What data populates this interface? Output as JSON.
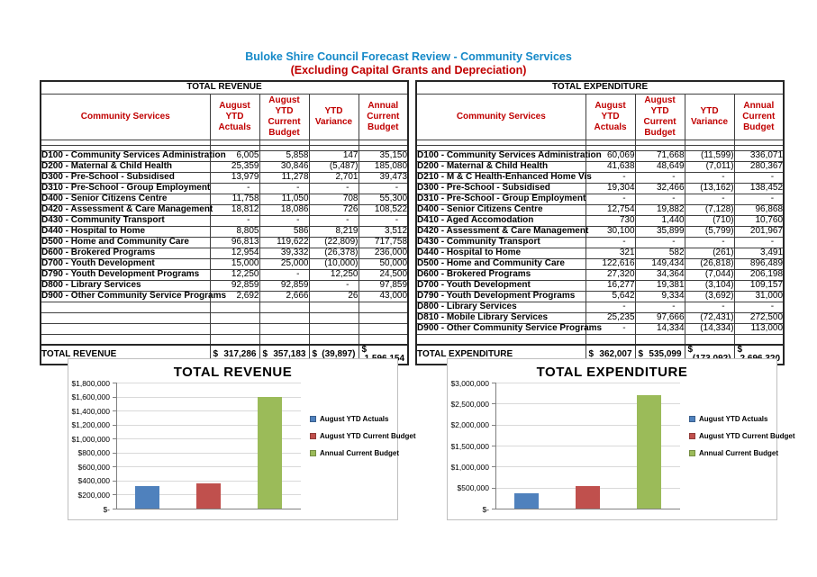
{
  "page": {
    "title": "Buloke Shire Council Forecast Review - Community Services",
    "subtitle": "(Excluding Capital Grants and Depreciation)"
  },
  "colors": {
    "title_blue": "#1589C8",
    "header_red": "#C00000",
    "bar_blue": "#4F81BD",
    "bar_red": "#C0504D",
    "bar_green": "#9BBB59"
  },
  "tables": [
    {
      "title": "TOTAL REVENUE",
      "label_header": "Community Services",
      "columns": [
        "August YTD Actuals",
        "August YTD Current Budget",
        "YTD Variance",
        "Annual Current Budget"
      ],
      "rows": [
        {
          "label": "D100 - Community Services Administration",
          "values": [
            "6,005",
            "5,858",
            "147",
            "35,150"
          ]
        },
        {
          "label": "D200 - Maternal & Child Health",
          "values": [
            "25,359",
            "30,846",
            "(5,487)",
            "185,080"
          ]
        },
        {
          "label": "D300 - Pre-School - Subsidised",
          "values": [
            "13,979",
            "11,278",
            "2,701",
            "39,473"
          ]
        },
        {
          "label": "D310 - Pre-School - Group Employment",
          "values": [
            "-",
            "-",
            "-",
            "-"
          ]
        },
        {
          "label": "D400 - Senior Citizens Centre",
          "values": [
            "11,758",
            "11,050",
            "708",
            "55,300"
          ]
        },
        {
          "label": "D420 - Assessment & Care Management",
          "values": [
            "18,812",
            "18,086",
            "726",
            "108,522"
          ]
        },
        {
          "label": "D430 - Community Transport",
          "values": [
            "-",
            "-",
            "-",
            "-"
          ]
        },
        {
          "label": "D440 - Hospital to Home",
          "values": [
            "8,805",
            "586",
            "8,219",
            "3,512"
          ]
        },
        {
          "label": "D500 - Home and Community Care",
          "values": [
            "96,813",
            "119,622",
            "(22,809)",
            "717,758"
          ]
        },
        {
          "label": "D600 - Brokered Programs",
          "values": [
            "12,954",
            "39,332",
            "(26,378)",
            "236,000"
          ]
        },
        {
          "label": "D700 - Youth Development",
          "values": [
            "15,000",
            "25,000",
            "(10,000)",
            "50,000"
          ]
        },
        {
          "label": "D790 - Youth Development Programs",
          "values": [
            "12,250",
            "-",
            "12,250",
            "24,500"
          ]
        },
        {
          "label": "D800 - Library Services",
          "values": [
            "92,859",
            "92,859",
            "-",
            "97,859"
          ]
        },
        {
          "label": "D900 - Other Community Service Programs",
          "values": [
            "2,692",
            "2,666",
            "26",
            "43,000"
          ]
        },
        {
          "label": "",
          "values": [
            "",
            "",
            "",
            ""
          ]
        },
        {
          "label": "",
          "values": [
            "",
            "",
            "",
            ""
          ]
        },
        {
          "label": "",
          "values": [
            "",
            "",
            "",
            ""
          ]
        },
        {
          "label": "",
          "values": [
            "",
            "",
            "",
            ""
          ]
        }
      ],
      "total": {
        "label": "TOTAL REVENUE",
        "currency": "$",
        "values": [
          "317,286",
          "357,183",
          "(39,897)",
          "1,596,154"
        ]
      }
    },
    {
      "title": "TOTAL EXPENDITURE",
      "label_header": "Community Services",
      "columns": [
        "August YTD Actuals",
        "August YTD Current Budget",
        "YTD Variance",
        "Annual Current Budget"
      ],
      "rows": [
        {
          "label": "D100 - Community Services Administration",
          "values": [
            "60,069",
            "71,668",
            "(11,599)",
            "336,071"
          ]
        },
        {
          "label": "D200 - Maternal & Child Health",
          "values": [
            "41,638",
            "48,649",
            "(7,011)",
            "280,367"
          ]
        },
        {
          "label": "D210 - M & C Health-Enhanced Home Vis",
          "values": [
            "-",
            "-",
            "-",
            "-"
          ]
        },
        {
          "label": "D300 - Pre-School - Subsidised",
          "values": [
            "19,304",
            "32,466",
            "(13,162)",
            "138,452"
          ]
        },
        {
          "label": "D310 - Pre-School - Group Employment",
          "values": [
            "-",
            "-",
            "-",
            "-"
          ]
        },
        {
          "label": "D400 - Senior Citizens Centre",
          "values": [
            "12,754",
            "19,882",
            "(7,128)",
            "96,868"
          ]
        },
        {
          "label": "D410 - Aged Accomodation",
          "values": [
            "730",
            "1,440",
            "(710)",
            "10,760"
          ]
        },
        {
          "label": "D420 - Assessment & Care Management",
          "values": [
            "30,100",
            "35,899",
            "(5,799)",
            "201,967"
          ]
        },
        {
          "label": "D430 - Community Transport",
          "values": [
            "-",
            "-",
            "-",
            "-"
          ]
        },
        {
          "label": "D440 - Hospital to Home",
          "values": [
            "321",
            "582",
            "(261)",
            "3,491"
          ]
        },
        {
          "label": "D500 - Home and Community Care",
          "values": [
            "122,616",
            "149,434",
            "(26,818)",
            "896,489"
          ]
        },
        {
          "label": "D600 - Brokered Programs",
          "values": [
            "27,320",
            "34,364",
            "(7,044)",
            "206,198"
          ]
        },
        {
          "label": "D700 - Youth Development",
          "values": [
            "16,277",
            "19,381",
            "(3,104)",
            "109,157"
          ]
        },
        {
          "label": "D790 - Youth Development Programs",
          "values": [
            "5,642",
            "9,334",
            "(3,692)",
            "31,000"
          ]
        },
        {
          "label": "D800 - Library Services",
          "values": [
            "-",
            "-",
            "-",
            "-"
          ]
        },
        {
          "label": "D810 - Mobile Library Services",
          "values": [
            "25,235",
            "97,666",
            "(72,431)",
            "272,500"
          ]
        },
        {
          "label": "D900 - Other Community Service Programs",
          "values": [
            "-",
            "14,334",
            "(14,334)",
            "113,000"
          ]
        },
        {
          "label": "",
          "values": [
            "",
            "",
            "",
            ""
          ]
        }
      ],
      "total": {
        "label": "TOTAL EXPENDITURE",
        "currency": "$",
        "values": [
          "362,007",
          "535,099",
          "(173,092)",
          "2,696,320"
        ]
      }
    }
  ],
  "chart_data": [
    {
      "type": "bar",
      "title": "TOTAL REVENUE",
      "series": [
        {
          "name": "August YTD Actuals",
          "value": 317286,
          "color": "#4F81BD"
        },
        {
          "name": "August YTD Current Budget",
          "value": 357183,
          "color": "#C0504D"
        },
        {
          "name": "Annual Current Budget",
          "value": 1596154,
          "color": "#9BBB59"
        }
      ],
      "ylim": [
        0,
        1800000
      ],
      "grid": true,
      "legend_position": "right",
      "yticks": [
        {
          "value": 1800000,
          "label": "$1,800,000"
        },
        {
          "value": 1600000,
          "label": "$1,600,000"
        },
        {
          "value": 1400000,
          "label": "$1,400,000"
        },
        {
          "value": 1200000,
          "label": "$1,200,000"
        },
        {
          "value": 1000000,
          "label": "$1,000,000"
        },
        {
          "value": 800000,
          "label": "$800,000"
        },
        {
          "value": 600000,
          "label": "$600,000"
        },
        {
          "value": 400000,
          "label": "$400,000"
        },
        {
          "value": 200000,
          "label": "$200,000"
        },
        {
          "value": 0,
          "label": "$-"
        }
      ]
    },
    {
      "type": "bar",
      "title": "TOTAL EXPENDITURE",
      "series": [
        {
          "name": "August YTD Actuals",
          "value": 362007,
          "color": "#4F81BD"
        },
        {
          "name": "August YTD Current Budget",
          "value": 535099,
          "color": "#C0504D"
        },
        {
          "name": "Annual Current Budget",
          "value": 2696320,
          "color": "#9BBB59"
        }
      ],
      "ylim": [
        0,
        3000000
      ],
      "grid": true,
      "legend_position": "right",
      "yticks": [
        {
          "value": 3000000,
          "label": "$3,000,000"
        },
        {
          "value": 2500000,
          "label": "$2,500,000"
        },
        {
          "value": 2000000,
          "label": "$2,000,000"
        },
        {
          "value": 1500000,
          "label": "$1,500,000"
        },
        {
          "value": 1000000,
          "label": "$1,000,000"
        },
        {
          "value": 500000,
          "label": "$500,000"
        },
        {
          "value": 0,
          "label": "$-"
        }
      ]
    }
  ]
}
